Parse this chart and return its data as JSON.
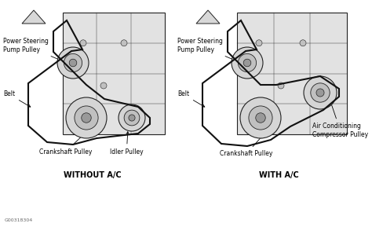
{
  "image_bg": "#ffffff",
  "fig_width": 4.74,
  "fig_height": 2.89,
  "dpi": 100,
  "left_title": "WITHOUT A/C",
  "right_title": "WITH A/C",
  "watermark": "G00318304",
  "lc": "#222222",
  "belt_color": "#111111",
  "block_color": "#e2e2e2",
  "pulley_outer": "#d5d5d5",
  "pulley_mid": "#c0c0c0",
  "pulley_hub": "#999999"
}
